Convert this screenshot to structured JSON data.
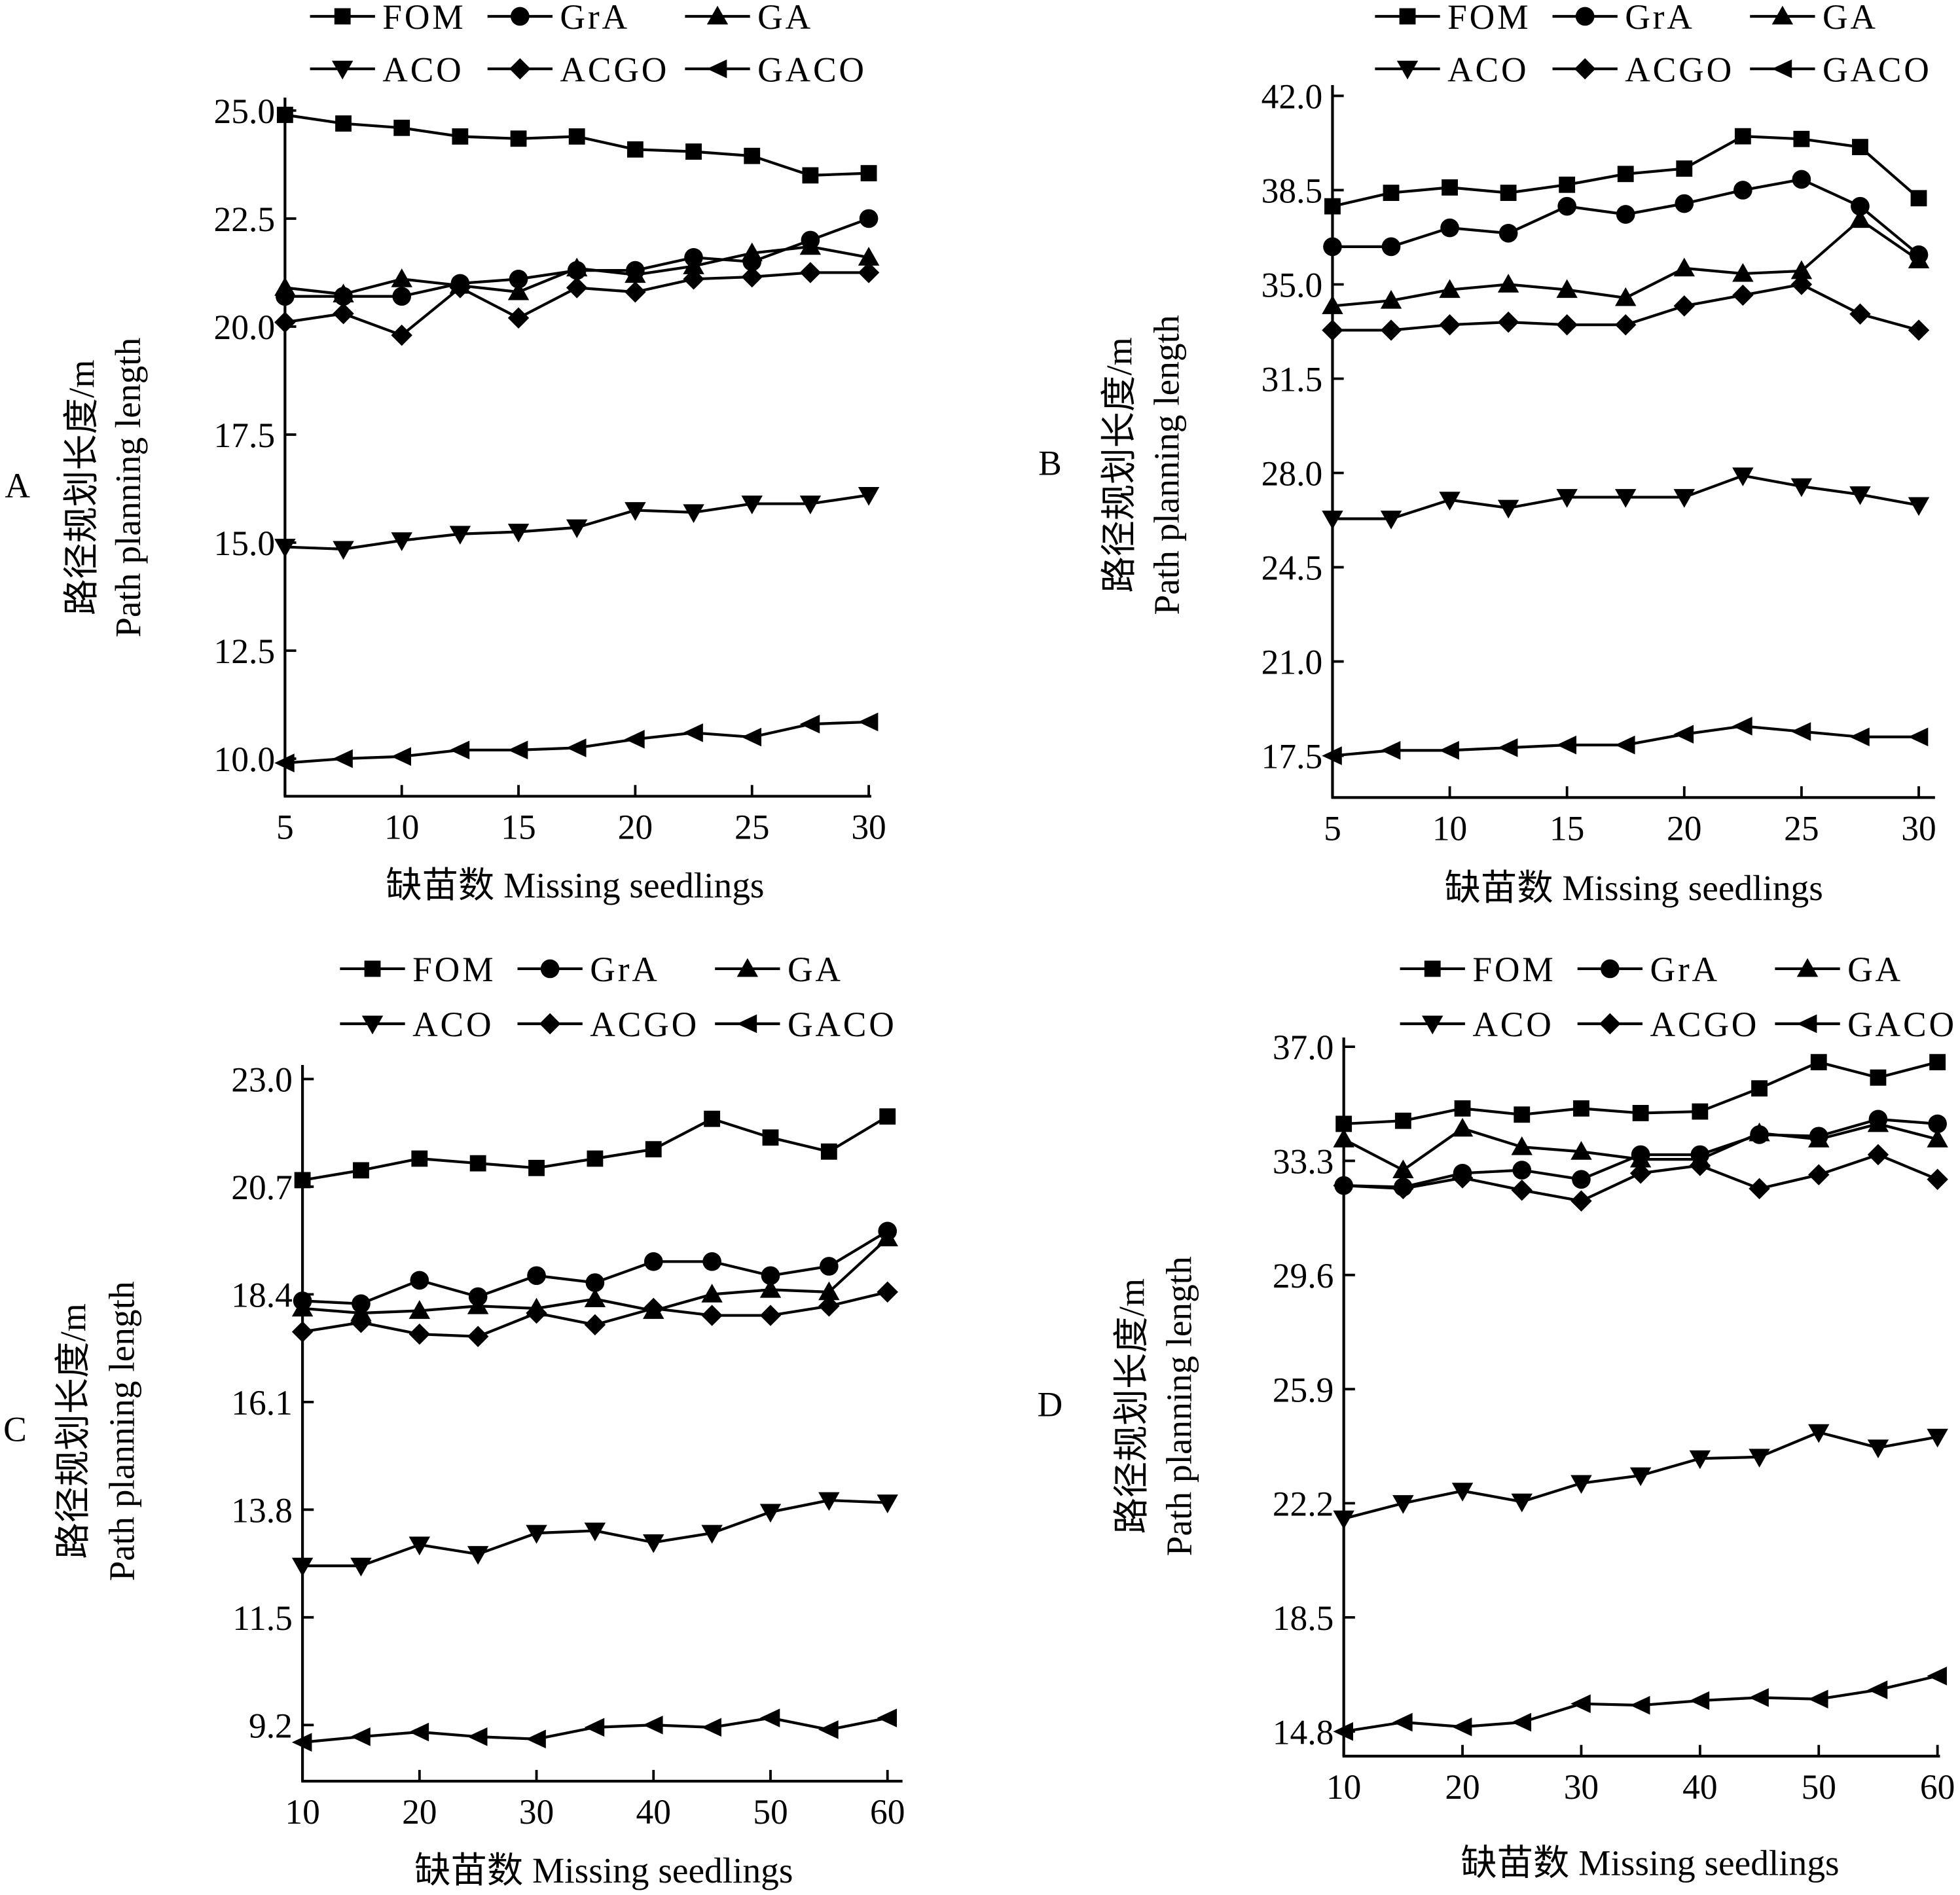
{
  "legend_labels": [
    "FOM",
    "GrA",
    "GA",
    "ACO",
    "ACGO",
    "GACO"
  ],
  "marker_shapes": {
    "FOM": "square",
    "GrA": "circle",
    "GA": "triangle-up",
    "ACO": "triangle-down",
    "ACGO": "diamond",
    "GACO": "triangle-left"
  },
  "colors": {
    "line": "#000000",
    "background": "#ffffff"
  },
  "chart_data": [
    {
      "panel": "A",
      "type": "line",
      "xlabel": "缺苗数 Missing seedlings",
      "ylabel_cn": "路径规划长度/m",
      "ylabel_en": "Path planning length",
      "x": [
        5,
        7.5,
        10,
        12.5,
        15,
        17.5,
        20,
        22.5,
        25,
        27.5,
        30
      ],
      "xticks": [
        5,
        10,
        15,
        20,
        25,
        30
      ],
      "yticks": [
        "10.0",
        "12.5",
        "15.0",
        "17.5",
        "20.0",
        "22.5",
        "25.0"
      ],
      "xlim": [
        5,
        30
      ],
      "ylim": [
        9.13,
        25.3
      ],
      "legend": "top",
      "series": [
        {
          "name": "FOM",
          "values": [
            24.9,
            24.7,
            24.6,
            24.4,
            24.35,
            24.4,
            24.1,
            24.05,
            23.95,
            23.5,
            23.55
          ]
        },
        {
          "name": "GrA",
          "values": [
            20.7,
            20.7,
            20.7,
            21.0,
            21.1,
            21.3,
            21.3,
            21.6,
            21.5,
            22.0,
            22.5
          ]
        },
        {
          "name": "GA",
          "values": [
            20.9,
            20.75,
            21.1,
            20.95,
            20.8,
            21.35,
            21.2,
            21.4,
            21.7,
            21.85,
            21.6
          ]
        },
        {
          "name": "ACO",
          "values": [
            14.9,
            14.85,
            15.05,
            15.2,
            15.25,
            15.35,
            15.75,
            15.7,
            15.9,
            15.9,
            16.1
          ]
        },
        {
          "name": "ACGO",
          "values": [
            20.1,
            20.3,
            19.8,
            20.9,
            20.2,
            20.9,
            20.8,
            21.1,
            21.15,
            21.25,
            21.25
          ]
        },
        {
          "name": "GACO",
          "values": [
            9.9,
            10.0,
            10.05,
            10.2,
            10.2,
            10.25,
            10.45,
            10.6,
            10.5,
            10.8,
            10.85
          ]
        }
      ]
    },
    {
      "panel": "B",
      "type": "line",
      "xlabel": "缺苗数 Missing seedlings",
      "ylabel_cn": "路径规划长度/m",
      "ylabel_en": "Path planning length",
      "x": [
        5,
        7.5,
        10,
        12.5,
        15,
        17.5,
        20,
        22.5,
        25,
        27.5,
        30
      ],
      "xticks": [
        5,
        10,
        15,
        20,
        25,
        30
      ],
      "yticks": [
        "17.5",
        "21.0",
        "24.5",
        "28.0",
        "31.5",
        "35.0",
        "38.5",
        "42.0"
      ],
      "xlim": [
        5,
        30
      ],
      "ylim": [
        15.95,
        42.4
      ],
      "legend": "top",
      "series": [
        {
          "name": "FOM",
          "values": [
            37.9,
            38.4,
            38.6,
            38.4,
            38.7,
            39.1,
            39.3,
            40.5,
            40.4,
            40.1,
            38.2
          ]
        },
        {
          "name": "GrA",
          "values": [
            36.4,
            36.4,
            37.1,
            36.9,
            37.9,
            37.6,
            38.0,
            38.5,
            38.9,
            37.9,
            36.1
          ]
        },
        {
          "name": "GA",
          "values": [
            34.2,
            34.4,
            34.8,
            35.0,
            34.8,
            34.5,
            35.6,
            35.4,
            35.5,
            37.4,
            35.9
          ]
        },
        {
          "name": "ACO",
          "values": [
            26.3,
            26.3,
            27.0,
            26.7,
            27.1,
            27.1,
            27.1,
            27.9,
            27.5,
            27.2,
            26.8
          ]
        },
        {
          "name": "ACGO",
          "values": [
            33.3,
            33.3,
            33.5,
            33.6,
            33.5,
            33.5,
            34.2,
            34.6,
            35.0,
            33.9,
            33.3
          ]
        },
        {
          "name": "GACO",
          "values": [
            17.5,
            17.7,
            17.7,
            17.8,
            17.9,
            17.9,
            18.3,
            18.6,
            18.4,
            18.2,
            18.2
          ]
        }
      ]
    },
    {
      "panel": "C",
      "type": "line",
      "xlabel": "缺苗数 Missing seedlings",
      "ylabel_cn": "路径规划长度/m",
      "ylabel_en": "Path planning length",
      "x": [
        10,
        15,
        20,
        25,
        30,
        35,
        40,
        45,
        50,
        55,
        60
      ],
      "xticks": [
        10,
        20,
        30,
        40,
        50,
        60
      ],
      "yticks": [
        "9.2",
        "11.5",
        "13.8",
        "16.1",
        "18.4",
        "20.7",
        "23.0"
      ],
      "xlim": [
        10,
        60
      ],
      "ylim": [
        8.0,
        23.3
      ],
      "legend": "top",
      "series": [
        {
          "name": "FOM",
          "values": [
            20.84,
            21.05,
            21.3,
            21.2,
            21.1,
            21.3,
            21.5,
            22.15,
            21.75,
            21.45,
            22.2
          ]
        },
        {
          "name": "GrA",
          "values": [
            18.26,
            18.2,
            18.7,
            18.35,
            18.8,
            18.65,
            19.1,
            19.1,
            18.8,
            19.0,
            19.75
          ]
        },
        {
          "name": "GA",
          "values": [
            18.1,
            18.0,
            18.05,
            18.15,
            18.1,
            18.3,
            18.05,
            18.4,
            18.5,
            18.45,
            19.6
          ]
        },
        {
          "name": "ACO",
          "values": [
            12.6,
            12.6,
            13.05,
            12.85,
            13.3,
            13.35,
            13.1,
            13.3,
            13.75,
            14.0,
            13.95
          ]
        },
        {
          "name": "ACGO",
          "values": [
            17.6,
            17.8,
            17.55,
            17.5,
            18.0,
            17.75,
            18.1,
            17.95,
            17.95,
            18.15,
            18.45
          ]
        },
        {
          "name": "GACO",
          "values": [
            8.83,
            8.95,
            9.05,
            8.95,
            8.9,
            9.15,
            9.2,
            9.15,
            9.35,
            9.1,
            9.35
          ]
        }
      ]
    },
    {
      "panel": "D",
      "type": "line",
      "xlabel": "缺苗数 Missing seedlings",
      "ylabel_cn": "路径规划长度/m",
      "ylabel_en": "Path planning length",
      "x": [
        10,
        15,
        20,
        25,
        30,
        35,
        40,
        45,
        50,
        55,
        60
      ],
      "xticks": [
        10,
        20,
        30,
        40,
        50,
        60
      ],
      "yticks": [
        "14.8",
        "18.5",
        "22.2",
        "25.9",
        "29.6",
        "33.3",
        "37.0"
      ],
      "xlim": [
        10,
        60
      ],
      "ylim": [
        14.0,
        37.3
      ],
      "legend": "top",
      "series": [
        {
          "name": "FOM",
          "values": [
            34.5,
            34.6,
            35.0,
            34.8,
            35.0,
            34.85,
            34.9,
            35.65,
            36.5,
            36.0,
            36.5
          ]
        },
        {
          "name": "GrA",
          "values": [
            32.5,
            32.45,
            32.9,
            33.0,
            32.7,
            33.5,
            33.5,
            34.15,
            34.1,
            34.65,
            34.5
          ]
        },
        {
          "name": "GA",
          "values": [
            34.0,
            33.0,
            34.35,
            33.75,
            33.6,
            33.35,
            33.35,
            34.2,
            34.0,
            34.5,
            34.0
          ]
        },
        {
          "name": "ACO",
          "values": [
            21.7,
            22.2,
            22.6,
            22.25,
            22.85,
            23.1,
            23.65,
            23.7,
            24.5,
            24.0,
            24.35
          ]
        },
        {
          "name": "ACGO",
          "values": [
            32.5,
            32.4,
            32.75,
            32.35,
            32.0,
            32.9,
            33.15,
            32.4,
            32.85,
            33.5,
            32.7
          ]
        },
        {
          "name": "GACO",
          "values": [
            14.8,
            15.1,
            14.95,
            15.1,
            15.7,
            15.65,
            15.8,
            15.9,
            15.85,
            16.15,
            16.6
          ]
        }
      ]
    }
  ]
}
